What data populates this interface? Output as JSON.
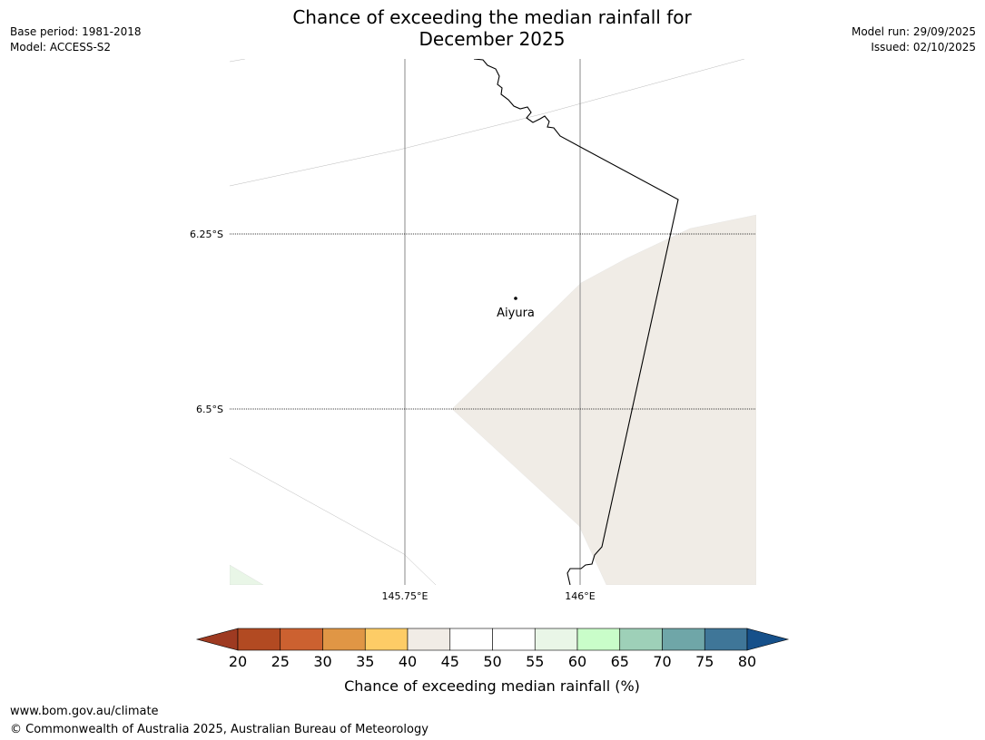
{
  "title_line1": "Chance of exceeding the median rainfall for",
  "title_line2": "December 2025",
  "meta_left": {
    "base_period": "Base period: 1981-2018",
    "model": "Model: ACCESS-S2"
  },
  "meta_right": {
    "model_run": "Model run: 29/09/2025",
    "issued": "Issued: 02/10/2025"
  },
  "map": {
    "lat_labels": [
      "6.25°S",
      "6.5°S"
    ],
    "lon_labels": [
      "145.75°E",
      "146°E"
    ],
    "place": {
      "name": "Aiyura"
    }
  },
  "legend": {
    "ticks": [
      "20",
      "25",
      "30",
      "35",
      "40",
      "45",
      "50",
      "55",
      "60",
      "65",
      "70",
      "75",
      "80"
    ],
    "colors": [
      "#9e3a21",
      "#b24a22",
      "#cc6130",
      "#e09645",
      "#fdcc66",
      "#f1ece6",
      "#ffffff",
      "#ffffff",
      "#e9f6e7",
      "#c9fdc9",
      "#9ed0b8",
      "#6fa6a8",
      "#3f7698",
      "#16508a"
    ],
    "label": "Chance of exceeding median rainfall (%)"
  },
  "footer": {
    "url": "www.bom.gov.au/climate",
    "copyright": "© Commonwealth of Australia 2025, Australian Bureau of Meteorology"
  }
}
